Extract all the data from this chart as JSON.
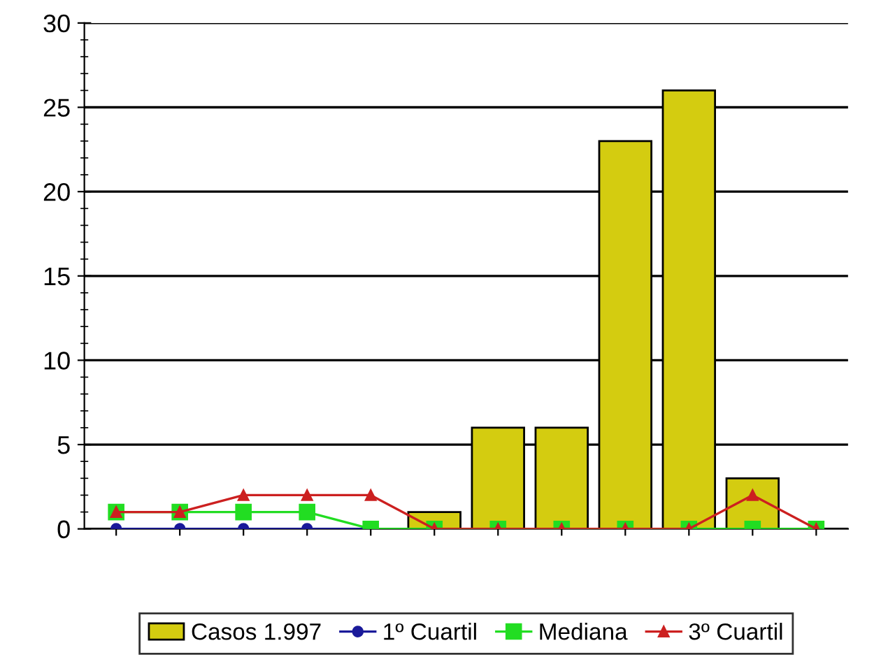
{
  "chart_data": {
    "type": "bar",
    "categories": [
      null,
      null,
      null,
      null,
      null,
      null,
      null,
      null,
      null,
      null,
      null,
      null
    ],
    "series": [
      {
        "name": "Casos 1.997",
        "color": "#d4cc10",
        "values": [
          null,
          null,
          null,
          null,
          null,
          1,
          6,
          6,
          23,
          26,
          3,
          null
        ]
      },
      {
        "name": "1º Cuartil",
        "type": "line",
        "color": "#1a1a9a",
        "marker": "circle",
        "values": [
          0,
          0,
          0,
          0,
          0,
          null,
          null,
          null,
          null,
          null,
          null,
          null
        ]
      },
      {
        "name": "Mediana",
        "type": "line",
        "color": "#22dd22",
        "marker": "square",
        "values": [
          1,
          1,
          1,
          1,
          0,
          0,
          0,
          0,
          0,
          0,
          0,
          0
        ]
      },
      {
        "name": "3º Cuartil",
        "type": "line",
        "color": "#cc2020",
        "marker": "triangle",
        "values": [
          1,
          1,
          2,
          2,
          2,
          0,
          0,
          0,
          0,
          0,
          2,
          0
        ]
      }
    ],
    "ylim": [
      0,
      30
    ],
    "yticks": [
      0,
      5,
      10,
      15,
      20,
      25,
      30
    ],
    "grid": "y",
    "legend": "bottom"
  }
}
